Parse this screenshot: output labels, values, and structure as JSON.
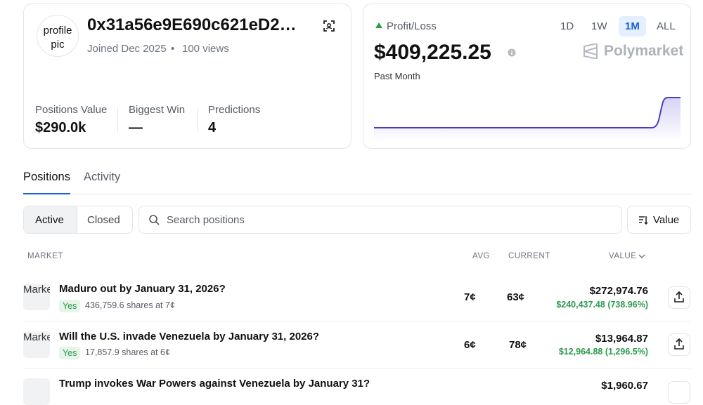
{
  "profile": {
    "avatar_alt": "profile pic",
    "name": "0x31a56e9E690c621eD2…",
    "joined": "Joined Dec 2025",
    "views": "100 views",
    "stats": [
      {
        "label": "Positions Value",
        "value": "$290.0k"
      },
      {
        "label": "Biggest Win",
        "value": "—"
      },
      {
        "label": "Predictions",
        "value": "4"
      }
    ]
  },
  "pnl": {
    "label": "Profit/Loss",
    "ranges": [
      "1D",
      "1W",
      "1M",
      "ALL"
    ],
    "active_range": "1M",
    "value": "$409,225.25",
    "period": "Past Month",
    "brand": "Polymarket"
  },
  "tabs": [
    "Positions",
    "Activity"
  ],
  "filters": [
    "Active",
    "Closed"
  ],
  "search_placeholder": "Search positions",
  "sort": "Value",
  "table": {
    "headers": [
      "MARKET",
      "AVG",
      "CURRENT",
      "VALUE"
    ],
    "image_alt": "Market",
    "rows": [
      {
        "title": "Maduro out by January 31, 2026?",
        "outcome": "Yes",
        "shares": "436,759.6 shares at 7¢",
        "avg": "7¢",
        "current": "63¢",
        "value": "$272,974.76",
        "gain": "$240,437.48 (738.96%)"
      },
      {
        "title": "Will the U.S. invade Venezuela by January 31, 2026?",
        "outcome": "Yes",
        "shares": "17,857.9 shares at 6¢",
        "avg": "6¢",
        "current": "78¢",
        "value": "$13,964.87",
        "gain": "$12,964.88 (1,296.5%)"
      },
      {
        "title": "Trump invokes War Powers against Venezuela by January 31?",
        "value": "$1,960.67"
      }
    ]
  }
}
